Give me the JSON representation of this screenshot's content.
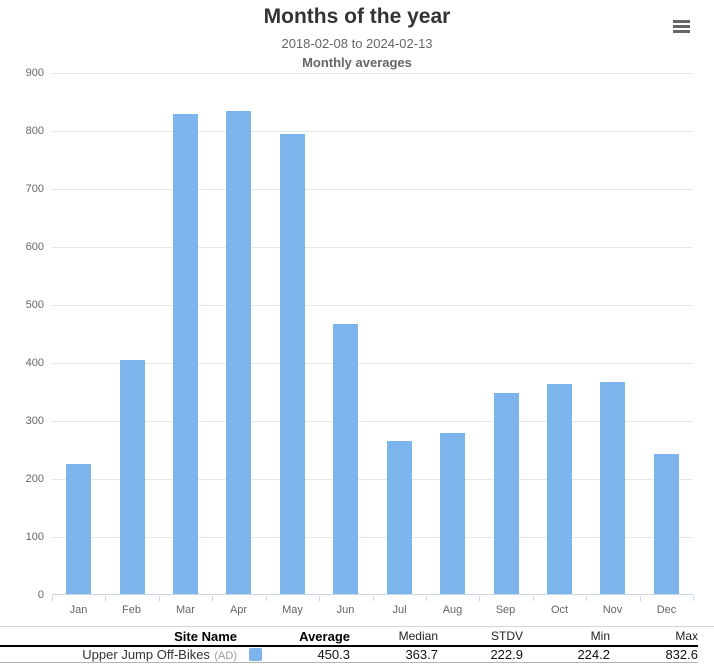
{
  "header": {
    "title": "Months of the year",
    "subtitle": "2018-02-08 to 2024-02-13",
    "subtitle2": "Monthly averages"
  },
  "colors": {
    "bar": "#7cb5ec",
    "grid": "#e6e6e6",
    "axis_line": "#ccd6eb",
    "axis_label": "#666666",
    "title": "#333333",
    "subtitle": "#666666"
  },
  "menu": {
    "icon": "hamburger-icon"
  },
  "chart_data": {
    "type": "bar",
    "title": "Months of the year",
    "subtitle": "2018-02-08 to 2024-02-13",
    "subtitle2": "Monthly averages",
    "categories": [
      "Jan",
      "Feb",
      "Mar",
      "Apr",
      "May",
      "Jun",
      "Jul",
      "Aug",
      "Sep",
      "Oct",
      "Nov",
      "Dec"
    ],
    "series": [
      {
        "name": "Upper Jump Off-Bikes (AD)",
        "color": "#7cb5ec",
        "values": [
          224.2,
          403.1,
          828.0,
          832.6,
          793.2,
          466.0,
          264.0,
          277.5,
          346.0,
          362.4,
          365.0,
          241.6
        ]
      }
    ],
    "xlabel": "",
    "ylabel": "",
    "ylim": [
      0,
      900
    ],
    "yticks": [
      0,
      100,
      200,
      300,
      400,
      500,
      600,
      700,
      800,
      900
    ],
    "grid": true,
    "legend_position": "bottom-table"
  },
  "stats_table": {
    "headers": {
      "site_name": "Site Name",
      "average": "Average",
      "median": "Median",
      "stdv": "STDV",
      "min": "Min",
      "max": "Max"
    },
    "rows": [
      {
        "site_name": "Upper Jump Off-Bikes",
        "site_qualifier": "(AD)",
        "swatch_color": "#7cb5ec",
        "average": "450.3",
        "median": "363.7",
        "stdv": "222.9",
        "min": "224.2",
        "max": "832.6"
      }
    ]
  }
}
